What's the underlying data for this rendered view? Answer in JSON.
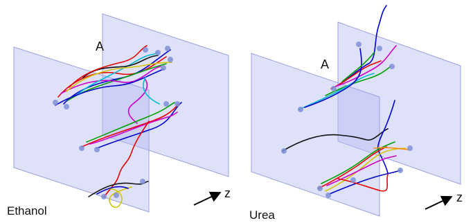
{
  "panels": [
    {
      "condition_label": "Ethanol",
      "marker_label": "A",
      "axis_label": "z"
    },
    {
      "condition_label": "Urea",
      "marker_label": "A",
      "axis_label": "z"
    }
  ],
  "colors": {
    "plane_fill": "#b9bdf2",
    "plane_stroke": "#9aa0e0",
    "endpoint": "#7f8fd6",
    "trajectories": [
      "#e60000",
      "#0000cc",
      "#00a000",
      "#cc00cc",
      "#00bcd4",
      "#d4c400",
      "#111111",
      "#ff8c00"
    ]
  },
  "icons": {
    "axis_arrow": "arrow-icon"
  }
}
